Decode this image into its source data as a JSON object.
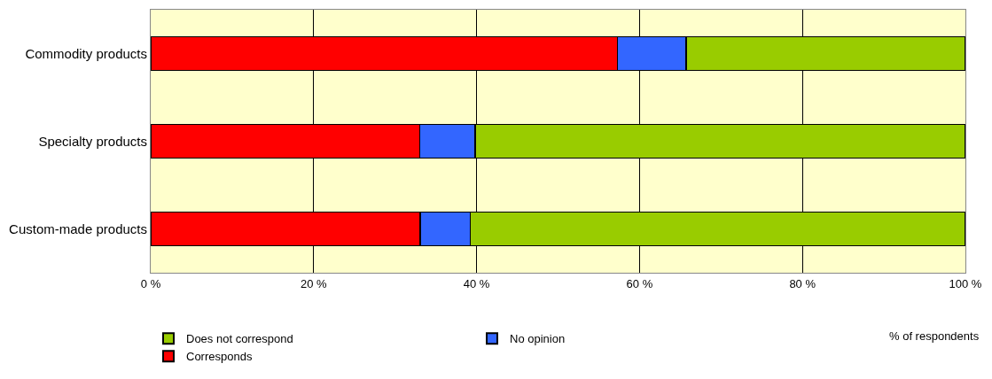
{
  "chart_data": {
    "type": "bar",
    "orientation": "horizontal",
    "stacked": true,
    "categories": [
      "Commodity products",
      "Specialty products",
      "Custom-made products"
    ],
    "series": [
      {
        "name": "Corresponds",
        "color": "#ff0000",
        "values": [
          57.3,
          33.0,
          33.1
        ]
      },
      {
        "name": "No opinion",
        "color": "#3366ff",
        "values": [
          8.4,
          6.8,
          6.1
        ]
      },
      {
        "name": "Does not correspond",
        "color": "#99cc00",
        "values": [
          34.3,
          60.2,
          60.8
        ]
      }
    ],
    "xlabel": "% of respondents",
    "xlim": [
      0,
      100
    ],
    "xticks": [
      {
        "value": 0,
        "label": "0 %"
      },
      {
        "value": 20,
        "label": "20 %"
      },
      {
        "value": 40,
        "label": "40 %"
      },
      {
        "value": 60,
        "label": "60 %"
      },
      {
        "value": 80,
        "label": "80 %"
      },
      {
        "value": 100,
        "label": "100 %"
      }
    ],
    "grid": "x",
    "legend": "bottom"
  }
}
